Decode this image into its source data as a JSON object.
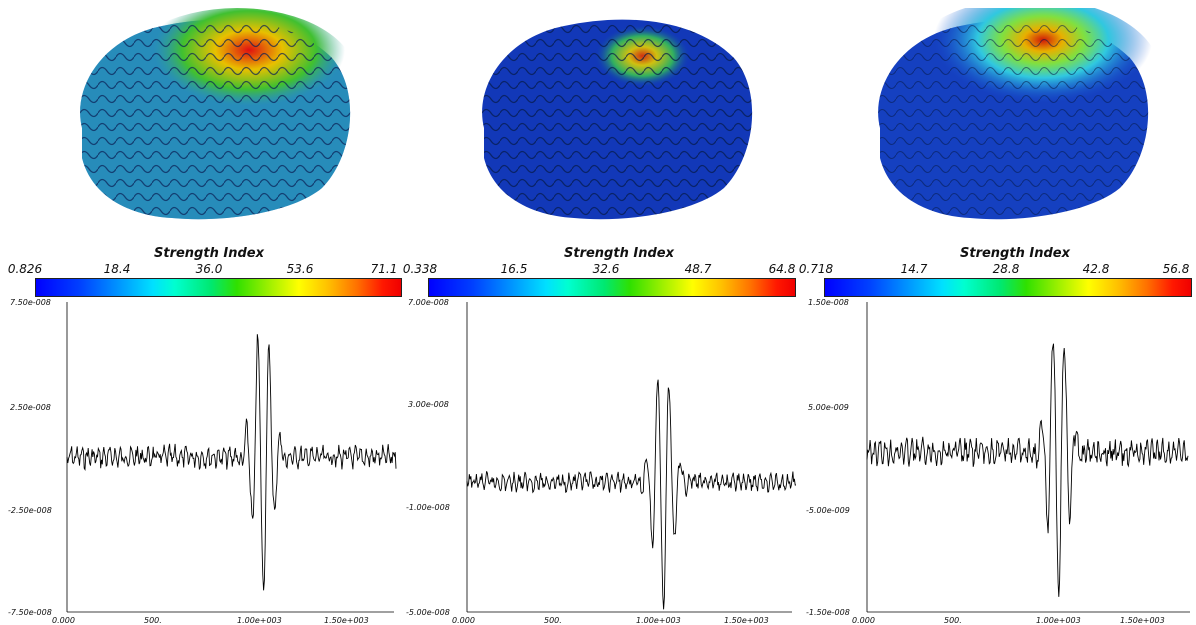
{
  "panels": [
    {
      "colorbar": {
        "title": "Strength Index",
        "labels": [
          "0.826",
          "18.4",
          "36.0",
          "53.6",
          "71.1"
        ]
      },
      "plot": {
        "y_ticks": [
          "7.50e-008",
          "2.50e-008",
          "-2.50e-008",
          "-7.50e-008"
        ],
        "x_ticks": [
          "0.000",
          "500.",
          "1.00e+003",
          "1.50e+003"
        ]
      }
    },
    {
      "colorbar": {
        "title": "Strength Index",
        "labels": [
          "0.338",
          "16.5",
          "32.6",
          "48.7",
          "64.8"
        ]
      },
      "plot": {
        "y_ticks": [
          "7.00e-008",
          "3.00e-008",
          "-1.00e-008",
          "-5.00e-008"
        ],
        "x_ticks": [
          "0.000",
          "500.",
          "1.00e+003",
          "1.50e+003"
        ]
      }
    },
    {
      "colorbar": {
        "title": "Strength Index",
        "labels": [
          "0.718",
          "14.7",
          "28.8",
          "42.8",
          "56.8"
        ]
      },
      "plot": {
        "y_ticks": [
          "1.50e-008",
          "5.00e-009",
          "-5.00e-009",
          "-1.50e-008"
        ],
        "x_ticks": [
          "0.000",
          "500.",
          "1.00e+003",
          "1.50e+003"
        ]
      }
    }
  ]
}
